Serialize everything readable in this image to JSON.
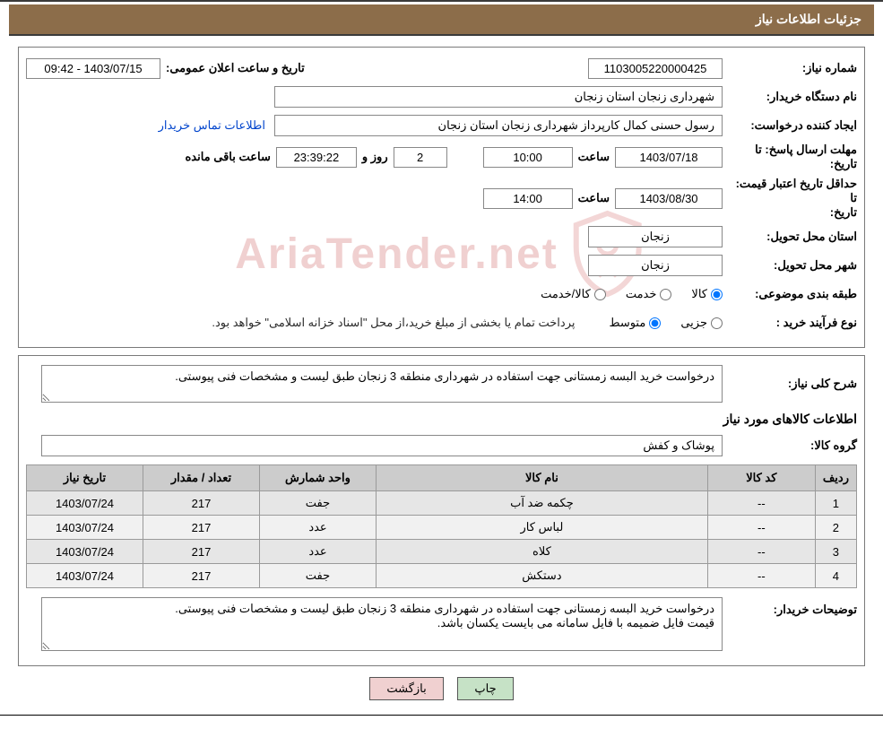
{
  "header": {
    "title": "جزئیات اطلاعات نیاز"
  },
  "fields": {
    "need_no_label": "شماره نیاز:",
    "need_no": "1103005220000425",
    "announce_label": "تاریخ و ساعت اعلان عمومی:",
    "announce_value": "1403/07/15 - 09:42",
    "buyer_org_label": "نام دستگاه خریدار:",
    "buyer_org": "شهرداری زنجان استان زنجان",
    "requester_label": "ایجاد کننده درخواست:",
    "requester": "رسول حسنی کمال کارپرداز شهرداری زنجان استان زنجان",
    "contact_link": "اطلاعات تماس خریدار",
    "deadline_label": "مهلت ارسال پاسخ:",
    "ta": "تا",
    "tarikh": "تاریخ:",
    "saat": "ساعت",
    "deadline_date": "1403/07/18",
    "deadline_time": "10:00",
    "rooz_va": "روز و",
    "days_remaining": "2",
    "time_remaining": "23:39:22",
    "remaining_suffix": "ساعت باقی مانده",
    "validity_label": "حداقل تاریخ اعتبار قیمت:",
    "validity_date": "1403/08/30",
    "validity_time": "14:00",
    "province_label": "استان محل تحویل:",
    "province": "زنجان",
    "city_label": "شهر محل تحویل:",
    "city": "زنجان",
    "subject_class_label": "طبقه بندی موضوعی:",
    "opt_kala": "کالا",
    "opt_khedmat": "خدمت",
    "opt_kalakhedmat": "کالا/خدمت",
    "process_type_label": "نوع فرآیند خرید :",
    "opt_jozi": "جزیی",
    "opt_motavaset": "متوسط",
    "process_note": "پرداخت تمام یا بخشی از مبلغ خرید،از محل \"اسناد خزانه اسلامی\" خواهد بود.",
    "desc_label": "شرح کلی نیاز:",
    "desc_text": "درخواست خرید البسه زمستانی جهت استفاده در شهرداری منطقه 3 زنجان طبق لیست و مشخصات فنی پیوستی.",
    "goods_header": "اطلاعات کالاهای مورد نیاز",
    "group_label": "گروه کالا:",
    "group_value": "پوشاک و کفش",
    "buyer_notes_label": "توضیحات خریدار:",
    "buyer_notes": "درخواست خرید البسه زمستانی جهت استفاده در شهرداری منطقه 3 زنجان طبق لیست و مشخصات فنی پیوستی.\nقیمت فایل ضمیمه با فایل سامانه می بایست یکسان باشد."
  },
  "table": {
    "headers": {
      "ridif": "ردیف",
      "code": "کد کالا",
      "name": "نام کالا",
      "unit": "واحد شمارش",
      "qty": "تعداد / مقدار",
      "date": "تاریخ نیاز"
    },
    "rows": [
      {
        "n": "1",
        "code": "--",
        "name": "چکمه ضد آب",
        "unit": "جفت",
        "qty": "217",
        "date": "1403/07/24"
      },
      {
        "n": "2",
        "code": "--",
        "name": "لباس کار",
        "unit": "عدد",
        "qty": "217",
        "date": "1403/07/24"
      },
      {
        "n": "3",
        "code": "--",
        "name": "کلاه",
        "unit": "عدد",
        "qty": "217",
        "date": "1403/07/24"
      },
      {
        "n": "4",
        "code": "--",
        "name": "دستکش",
        "unit": "جفت",
        "qty": "217",
        "date": "1403/07/24"
      }
    ]
  },
  "buttons": {
    "print": "چاپ",
    "back": "بازگشت"
  },
  "watermark": {
    "text": "AriaTender.net"
  }
}
